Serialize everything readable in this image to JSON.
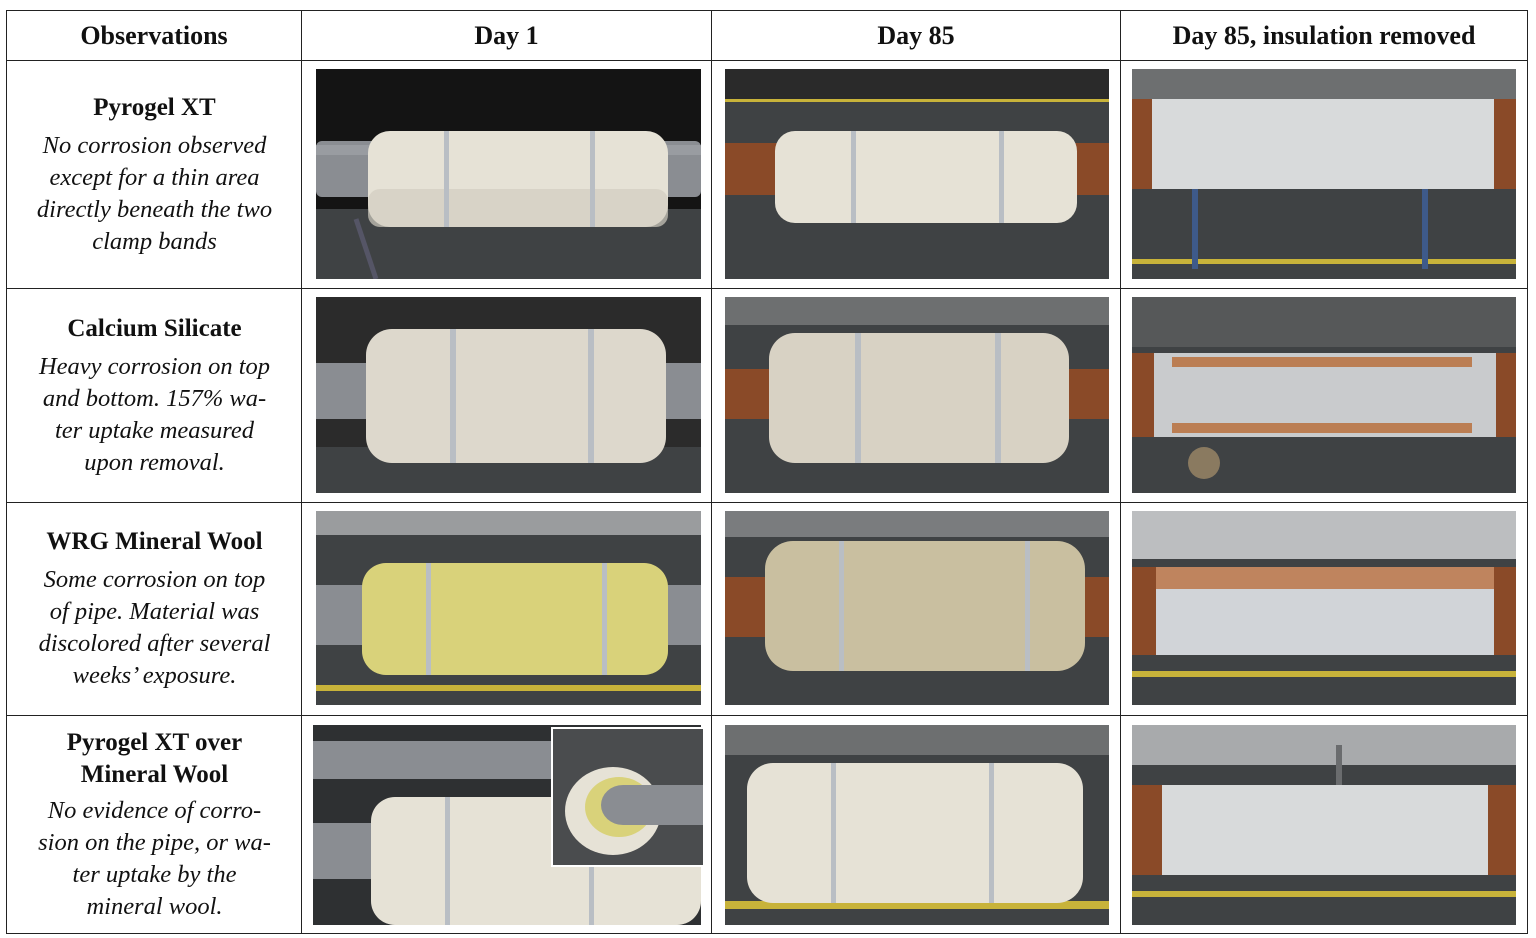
{
  "headers": {
    "observations": "Observations",
    "day1": "Day 1",
    "day85": "Day 85",
    "day85_removed": "Day 85, insulation removed"
  },
  "rows": [
    {
      "material": "Pyrogel XT",
      "note_lines": [
        "No corrosion observed",
        "except for a thin area",
        "directly beneath the two",
        "clamp bands"
      ]
    },
    {
      "material": "Calcium Silicate",
      "note_lines": [
        "Heavy corrosion on top",
        "and bottom.  157% wa-",
        "ter uptake measured",
        "upon removal."
      ]
    },
    {
      "material": "WRG Mineral Wool",
      "note_lines": [
        "Some corrosion on top",
        "of pipe.  Material was",
        "discolored after several",
        "weeks’ exposure."
      ]
    },
    {
      "material_lines": [
        "Pyrogel XT over",
        "Mineral Wool"
      ],
      "note_lines": [
        "No evidence of corro-",
        "sion on the pipe, or wa-",
        "ter uptake by the",
        "mineral wool."
      ]
    }
  ],
  "photos": {
    "pyrogel_day1": "Pyrogel XT insulation on pipe, day 1",
    "pyrogel_day85": "Pyrogel XT insulation on pipe, day 85",
    "pyrogel_removed": "Pipe after Pyrogel XT removal, day 85",
    "calsil_day1": "Calcium silicate insulation on pipe, day 1",
    "calsil_day85": "Calcium silicate insulation on pipe, day 85",
    "calsil_removed": "Pipe after calcium silicate removal, day 85",
    "wool_day1": "WRG mineral wool insulation on pipe, day 1",
    "wool_day85": "WRG mineral wool insulation on pipe, day 85",
    "wool_removed": "Pipe after mineral wool removal, day 85",
    "combo_day1": "Pyrogel XT over mineral wool on pipe, day 1",
    "combo_inset": "Inset: layered wrap detail",
    "combo_day85": "Pyrogel XT over mineral wool on pipe, day 85",
    "combo_removed": "Pipe after combined insulation removal, day 85"
  },
  "colors": {
    "ground": "#3f4244",
    "pipe_gray": "#8a8d92",
    "pipe_rust": "#8a4a28",
    "insulation_white": "#e6e2d6",
    "insulation_calsil": "#ddd8cc",
    "wool_yellow": "#d9d27a",
    "wool_aged": "#c9bfa0",
    "band": "#b9bec4",
    "rust_spot": "#b86a35",
    "curb_yellow": "#c8b33a"
  }
}
